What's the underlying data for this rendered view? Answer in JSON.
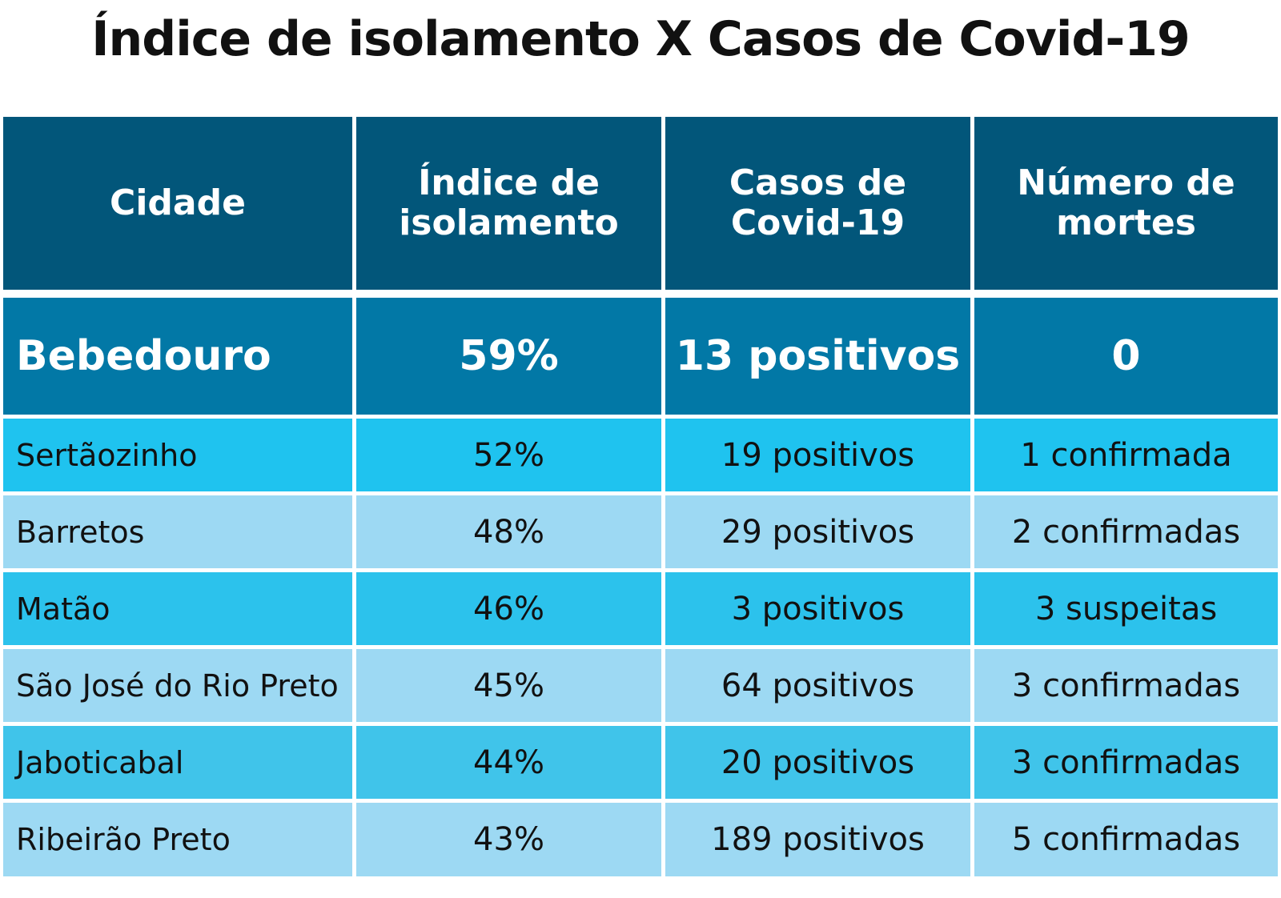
{
  "title": "Índice de isolamento X Casos de Covid-19",
  "colors": {
    "header_bg": "#02567a",
    "highlight_bg": "#0278a6",
    "row_colors": [
      "#1fc3ef",
      "#9dd9f3",
      "#2cc2ec",
      "#9dd9f3",
      "#40c4ea",
      "#9dd9f3"
    ],
    "header_text": "#ffffff",
    "body_text": "#111111"
  },
  "chart_data": {
    "type": "table",
    "title": "Índice de isolamento X Casos de Covid-19",
    "columns": [
      {
        "line1": "Cidade",
        "line2": ""
      },
      {
        "line1": "Índice de",
        "line2": "isolamento"
      },
      {
        "line1": "Casos de",
        "line2": "Covid-19"
      },
      {
        "line1": "Número de",
        "line2": "mortes"
      }
    ],
    "highlight_row": [
      "Bebedouro",
      "59%",
      "13 positivos",
      "0"
    ],
    "rows": [
      [
        "Sertãozinho",
        "52%",
        "19 positivos",
        "1 confirmada"
      ],
      [
        "Barretos",
        "48%",
        "29 positivos",
        "2 confirmadas"
      ],
      [
        "Matão",
        "46%",
        "3 positivos",
        "3 suspeitas"
      ],
      [
        "São José do Rio Preto",
        "45%",
        "64 positivos",
        "3 confirmadas"
      ],
      [
        "Jaboticabal",
        "44%",
        "20 positivos",
        "3 confirmadas"
      ],
      [
        "Ribeirão Preto",
        "43%",
        "189 positivos",
        "5 confirmadas"
      ]
    ]
  }
}
